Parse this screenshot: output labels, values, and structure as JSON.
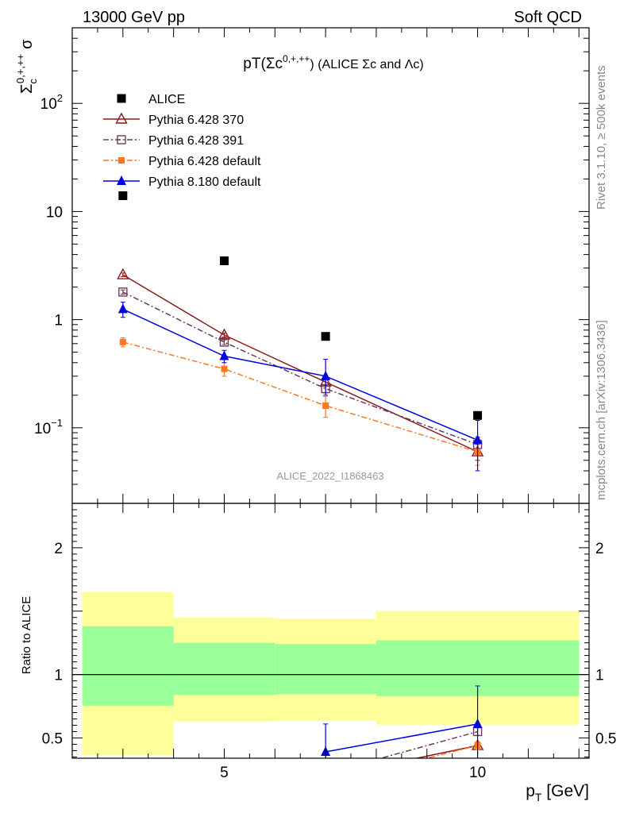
{
  "header": {
    "left": "13000 GeV pp",
    "right": "Soft QCD"
  },
  "side_labels": {
    "rivet": "Rivet 3.1.10, ≥ 500k events",
    "mcplots": "mcplots.cern.ch [arXiv:1306.3436]"
  },
  "watermark": "ALICE_2022_I1868463",
  "colors": {
    "band_green": "#99ff99",
    "band_yellow": "#ffff99",
    "alice": "#000000",
    "p370": "#8b1a1a",
    "p391": "#6b3a5a",
    "p6def": "#ff7722",
    "p8def": "#0000dd"
  },
  "chart_data": [
    {
      "type": "line",
      "title_main": "pT(Σc",
      "title_sup": "0,+,++",
      "title_rest": ") (ALICE Σc and Λc)",
      "ylabel_main": "Σ",
      "ylabel_sub": "c",
      "ylabel_sup": "0,+,++",
      "ylabel_sigma": "σ",
      "yscale": "log",
      "xlim": [
        2,
        12.2
      ],
      "ylim": [
        0.02,
        500
      ],
      "yticks": [
        {
          "v": 0.1,
          "base": "10",
          "exp": "−1"
        },
        {
          "v": 1,
          "base": "1",
          "exp": ""
        },
        {
          "v": 10,
          "base": "10",
          "exp": ""
        },
        {
          "v": 100,
          "base": "10",
          "exp": "2"
        }
      ],
      "legend_position": "top-left",
      "series": [
        {
          "name": "ALICE",
          "key": "alice",
          "marker": "square-filled",
          "dash": "none",
          "x": [
            3,
            5,
            7,
            10
          ],
          "y": [
            14,
            3.5,
            0.7,
            0.13
          ],
          "yerr_lo": [
            0,
            0,
            0,
            0
          ],
          "yerr_hi": [
            0,
            0,
            0,
            0
          ]
        },
        {
          "name": "Pythia 6.428 370",
          "key": "p370",
          "marker": "triangle-open",
          "dash": "solid",
          "x": [
            3,
            5,
            7,
            10
          ],
          "y": [
            2.6,
            0.72,
            0.265,
            0.06
          ],
          "yerr_lo": [
            0.1,
            0.03,
            0.02,
            0.01
          ],
          "yerr_hi": [
            0.1,
            0.03,
            0.02,
            0.01
          ]
        },
        {
          "name": "Pythia 6.428 391",
          "key": "p391",
          "marker": "square-open",
          "dash": "dashdot",
          "x": [
            3,
            5,
            7,
            10
          ],
          "y": [
            1.8,
            0.62,
            0.23,
            0.07
          ],
          "yerr_lo": [
            0.08,
            0.03,
            0.02,
            0.012
          ],
          "yerr_hi": [
            0.08,
            0.03,
            0.02,
            0.012
          ]
        },
        {
          "name": "Pythia 6.428 default",
          "key": "p6def",
          "marker": "square-filled-small",
          "dash": "dashdot",
          "x": [
            3,
            5,
            7,
            10
          ],
          "y": [
            0.62,
            0.35,
            0.16,
            0.06
          ],
          "yerr_lo": [
            0.06,
            0.05,
            0.035,
            0.015
          ],
          "yerr_hi": [
            0.06,
            0.05,
            0.035,
            0.015
          ]
        },
        {
          "name": "Pythia 8.180 default",
          "key": "p8def",
          "marker": "triangle-filled",
          "dash": "solid",
          "x": [
            3,
            5,
            7,
            10
          ],
          "y": [
            1.25,
            0.46,
            0.3,
            0.077
          ],
          "yerr_lo": [
            0.2,
            0.06,
            0.1,
            0.037
          ],
          "yerr_hi": [
            0.2,
            0.06,
            0.13,
            0.04
          ]
        }
      ]
    },
    {
      "type": "line",
      "ylabel": "Ratio to ALICE",
      "xlabel_main": "p",
      "xlabel_sub": "T",
      "xlabel_rest": " [GeV]",
      "xlim": [
        2,
        12.2
      ],
      "ylim": [
        0.34,
        2.35
      ],
      "yticks": [
        0.5,
        1,
        2
      ],
      "xticks": [
        5,
        10
      ],
      "bands": [
        {
          "x0": 2.2,
          "x1": 4.0,
          "green": [
            0.755,
            1.38
          ],
          "yellow": [
            0.365,
            1.65
          ]
        },
        {
          "x0": 4.0,
          "x1": 6.0,
          "green": [
            0.84,
            1.25
          ],
          "yellow": [
            0.63,
            1.45
          ]
        },
        {
          "x0": 6.0,
          "x1": 8.0,
          "green": [
            0.845,
            1.24
          ],
          "yellow": [
            0.635,
            1.44
          ]
        },
        {
          "x0": 8.0,
          "x1": 12.0,
          "green": [
            0.83,
            1.27
          ],
          "yellow": [
            0.605,
            1.5
          ]
        }
      ],
      "series": [
        {
          "key": "p370",
          "marker": "triangle-open",
          "dash": "solid",
          "x": [
            7,
            10
          ],
          "y": [
            0.19,
            0.44
          ],
          "yerr_lo": [
            0,
            0.02
          ],
          "yerr_hi": [
            0,
            0.02
          ]
        },
        {
          "key": "p391",
          "marker": "square-open",
          "dash": "dashdot",
          "x": [
            7,
            10
          ],
          "y": [
            0.22,
            0.55
          ],
          "yerr_lo": [
            0,
            0.03
          ],
          "yerr_hi": [
            0,
            0.03
          ]
        },
        {
          "key": "p6def",
          "marker": "square-filled-small",
          "dash": "dashdot",
          "x": [
            7,
            10
          ],
          "y": [
            0.14,
            0.44
          ],
          "yerr_lo": [
            0,
            0.03
          ],
          "yerr_hi": [
            0,
            0.03
          ]
        },
        {
          "key": "p8def",
          "marker": "triangle-filled",
          "dash": "solid",
          "x": [
            7,
            10
          ],
          "y": [
            0.39,
            0.61
          ],
          "yerr_lo": [
            0.07,
            0.3
          ],
          "yerr_hi": [
            0.22,
            0.3
          ]
        }
      ]
    }
  ]
}
